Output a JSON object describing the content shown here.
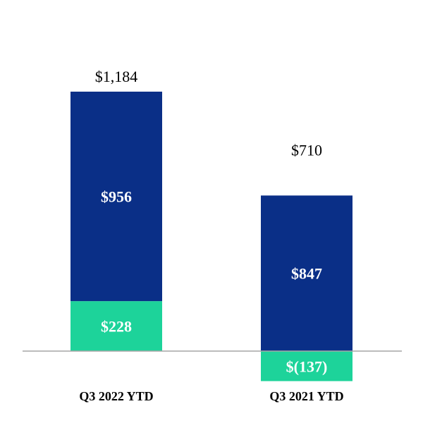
{
  "chart_data": {
    "type": "bar",
    "stacked": true,
    "categories": [
      "Q3 2022 YTD",
      "Q3 2021 YTD"
    ],
    "series": [
      {
        "color": "#0A2F87",
        "values": [
          956,
          847
        ],
        "labels": [
          "$956",
          "$847"
        ]
      },
      {
        "color": "#1DD39A",
        "values": [
          228,
          -137
        ],
        "labels": [
          "$228",
          "$(137)"
        ]
      }
    ],
    "totals": [
      1184,
      710
    ],
    "total_labels": [
      "$1,184",
      "$710"
    ],
    "baseline_color": "#A6A6A6",
    "grid": false,
    "legend": "none"
  }
}
